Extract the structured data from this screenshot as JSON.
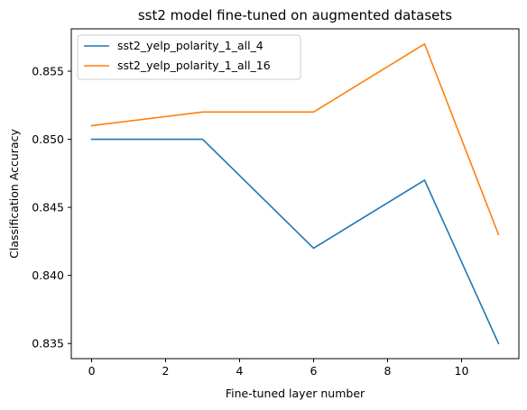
{
  "chart_data": {
    "type": "line",
    "title": "sst2 model fine-tuned on augmented datasets",
    "xlabel": "Fine-tuned layer number",
    "ylabel": "Classification Accuracy",
    "xlim": [
      -0.55,
      11.55
    ],
    "ylim": [
      0.83389,
      0.85811
    ],
    "xticks": [
      0,
      2,
      4,
      6,
      8,
      10
    ],
    "xtick_labels": [
      "0",
      "2",
      "4",
      "6",
      "8",
      "10"
    ],
    "yticks": [
      0.835,
      0.84,
      0.845,
      0.85,
      0.855
    ],
    "ytick_labels": [
      "0.835",
      "0.840",
      "0.845",
      "0.850",
      "0.855"
    ],
    "grid": false,
    "legend_position": "top-left",
    "series": [
      {
        "name": "sst2_yelp_polarity_1_all_4",
        "color": "#1f77b4",
        "x": [
          0,
          3,
          6,
          9,
          11
        ],
        "y": [
          0.85,
          0.85,
          0.842,
          0.847,
          0.835
        ]
      },
      {
        "name": "sst2_yelp_polarity_1_all_16",
        "color": "#ff7f0e",
        "x": [
          0,
          3,
          6,
          9,
          11
        ],
        "y": [
          0.851,
          0.852,
          0.852,
          0.857,
          0.843
        ]
      }
    ]
  }
}
